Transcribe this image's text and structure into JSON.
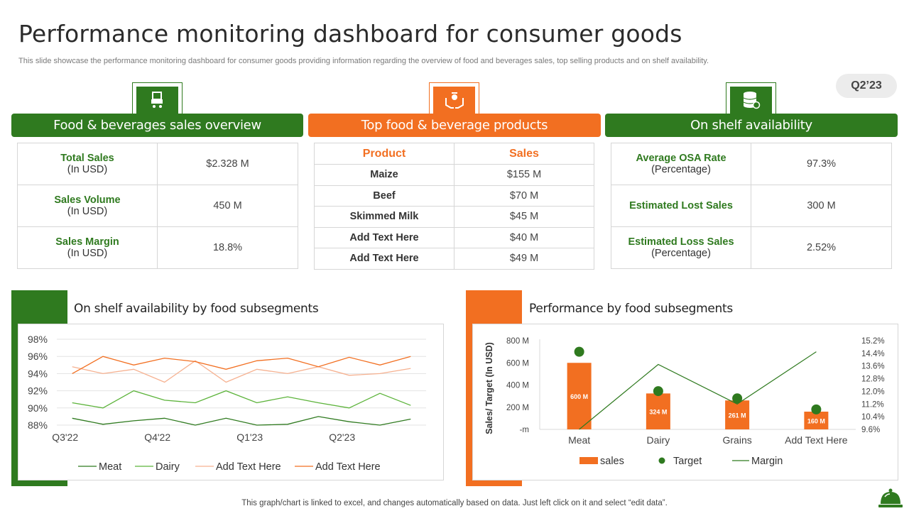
{
  "title": "Performance monitoring dashboard for consumer goods",
  "subtitle": "This slide showcase the performance monitoring dashboard for consumer goods providing information regarding the overview of food and beverages sales, top selling products and on shelf availability.",
  "quarter": "Q2’23",
  "footer": "This graph/chart is linked to excel,  and changes automatically based on data. Just left click on it and select “edit data”.",
  "colors": {
    "green": "#2f7a1f",
    "orange": "#f26f21"
  },
  "sections": {
    "sales_overview": {
      "header": "Food & beverages sales overview",
      "icon": "shopping-cart-icon",
      "rows": [
        {
          "label": "Total Sales",
          "sub": "(In USD)",
          "value": "$2.328 M"
        },
        {
          "label": "Sales Volume",
          "sub": "(In USD)",
          "value": "450 M"
        },
        {
          "label": "Sales Margin",
          "sub": "(In USD)",
          "value": "18.8%"
        }
      ]
    },
    "top_products": {
      "header": "Top food & beverage products",
      "icon": "hands-food-icon",
      "col_product": "Product",
      "col_sales": "Sales",
      "rows": [
        {
          "product": "Maize",
          "sales": "$155 M"
        },
        {
          "product": "Beef",
          "sales": "$70 M"
        },
        {
          "product": "Skimmed Milk",
          "sales": "$45 M"
        },
        {
          "product": "Add  Text Here",
          "sales": "$40 M"
        },
        {
          "product": "Add  Text Here",
          "sales": "$49 M"
        }
      ]
    },
    "shelf_availability": {
      "header": "On shelf availability",
      "icon": "database-icon",
      "rows": [
        {
          "label": "Average OSA Rate",
          "sub": "(Percentage)",
          "value": "97.3%"
        },
        {
          "label": "Estimated Lost Sales",
          "sub": "",
          "value": "300 M"
        },
        {
          "label": "Estimated Loss Sales",
          "sub": "(Percentage)",
          "value": "2.52%"
        }
      ]
    }
  },
  "chart_data": [
    {
      "type": "line",
      "title": "On shelf availability by food subsegments",
      "x_ticks": [
        "Q3'22",
        "Q4'22",
        "Q1'23",
        "Q2'23"
      ],
      "y_ticks": [
        "88%",
        "90%",
        "92%",
        "94%",
        "96%",
        "98%"
      ],
      "ylim": [
        88,
        98
      ],
      "points_per_series": 12,
      "series": [
        {
          "name": "Meat",
          "color": "#2f7a1f",
          "values": [
            88.8,
            88.1,
            88.5,
            88.8,
            88.0,
            88.8,
            88.0,
            88.1,
            89.0,
            88.4,
            88.0,
            88.7
          ]
        },
        {
          "name": "Dairy",
          "color": "#5cb33a",
          "values": [
            90.6,
            90.0,
            92.0,
            90.9,
            90.6,
            92.0,
            90.6,
            91.3,
            90.6,
            90.0,
            91.7,
            90.3
          ]
        },
        {
          "name": "Add Text Here",
          "color": "#f6b190",
          "values": [
            94.8,
            94.0,
            94.5,
            93.0,
            95.5,
            93.0,
            94.5,
            94.0,
            94.8,
            93.8,
            94.0,
            94.6
          ]
        },
        {
          "name": "Add Text Here",
          "color": "#f26f21",
          "values": [
            94.0,
            96.0,
            95.0,
            95.8,
            95.4,
            94.5,
            95.5,
            95.8,
            94.8,
            95.9,
            95.0,
            96.0
          ]
        }
      ],
      "legend": "bottom"
    },
    {
      "type": "bar",
      "title": "Performance by food subsegments",
      "ylabel": "Sales/ Target (In USD)",
      "categories": [
        "Meat",
        "Dairy",
        "Grains",
        "Add Text Here"
      ],
      "y_ticks": [
        "-m",
        "200 M",
        "400 M",
        "600 M",
        "800 M"
      ],
      "ylim": [
        0,
        800
      ],
      "y2_ticks": [
        "9.6%",
        "10.4%",
        "11.2%",
        "12.0%",
        "12.8%",
        "13.6%",
        "14.4%",
        "15.2%"
      ],
      "y2lim": [
        9.6,
        15.2
      ],
      "series": [
        {
          "name": "sales",
          "kind": "bar",
          "color": "#f26f21",
          "values": [
            600,
            324,
            261,
            160
          ],
          "labels": [
            "600 M",
            "324 M",
            "261 M",
            "160 M"
          ]
        },
        {
          "name": "Target",
          "kind": "dot",
          "color": "#2f7a1f",
          "values": [
            700,
            345,
            280,
            180
          ]
        },
        {
          "name": "Margin",
          "kind": "line",
          "axis": "right",
          "color": "#2f7a1f",
          "values": [
            9.6,
            13.7,
            11.2,
            14.5
          ]
        }
      ],
      "legend": "bottom"
    }
  ]
}
